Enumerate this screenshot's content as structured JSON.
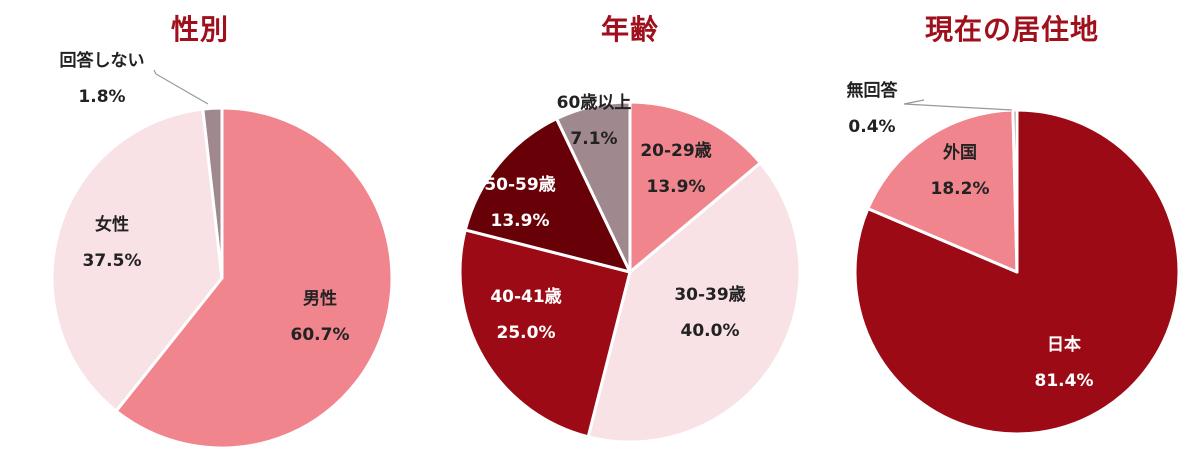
{
  "chart_data": [
    {
      "type": "pie",
      "title": "性別",
      "slices": [
        {
          "label": "男性",
          "value": 60.7,
          "value_text": "60.7%",
          "color": "#f0858d",
          "text_color": "#222222"
        },
        {
          "label": "女性",
          "value": 37.5,
          "value_text": "37.5%",
          "color": "#f8e2e6",
          "text_color": "#222222"
        },
        {
          "label": "回答しない",
          "value": 1.8,
          "value_text": "1.8%",
          "color": "#a0888f",
          "text_color": "#222222"
        }
      ]
    },
    {
      "type": "pie",
      "title": "年齢",
      "slices": [
        {
          "label": "20-29歳",
          "value": 13.9,
          "value_text": "13.9%",
          "color": "#f0858d",
          "text_color": "#222222"
        },
        {
          "label": "30-39歳",
          "value": 40.0,
          "value_text": "40.0%",
          "color": "#f8e2e6",
          "text_color": "#222222"
        },
        {
          "label": "40-41歳",
          "value": 25.0,
          "value_text": "25.0%",
          "color": "#9c0a16",
          "text_color": "#ffffff"
        },
        {
          "label": "50-59歳",
          "value": 13.9,
          "value_text": "13.9%",
          "color": "#680008",
          "text_color": "#ffffff"
        },
        {
          "label": "60歳以上",
          "value": 7.1,
          "value_text": "7.1%",
          "color": "#a0888f",
          "text_color": "#222222"
        }
      ]
    },
    {
      "type": "pie",
      "title": "現在の居住地",
      "slices": [
        {
          "label": "日本",
          "value": 81.4,
          "value_text": "81.4%",
          "color": "#9c0a16",
          "text_color": "#ffffff"
        },
        {
          "label": "無回答",
          "value": 0.4,
          "value_text": "0.4%",
          "color": "#a0888f",
          "text_color": "#222222"
        },
        {
          "label": "外国",
          "value": 18.2,
          "value_text": "18.2%",
          "color": "#f0858d",
          "text_color": "#222222"
        }
      ]
    }
  ]
}
